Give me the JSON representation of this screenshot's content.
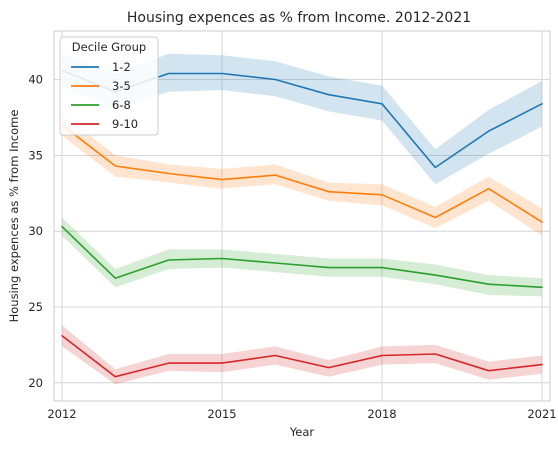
{
  "chart_data": {
    "type": "line",
    "title": "Housing expences as % from Income. 2012-2021",
    "xlabel": "Year",
    "ylabel": "Housing expences as % from Income",
    "xlim": [
      2011.85,
      2021.15
    ],
    "ylim": [
      18.8,
      43.2
    ],
    "xticks": [
      2012,
      2015,
      2018,
      2021
    ],
    "yticks": [
      20,
      25,
      30,
      35,
      40
    ],
    "grid": true,
    "legend": {
      "title": "Decile Group",
      "placement": "top-left"
    },
    "x": [
      2012,
      2013,
      2014,
      2015,
      2016,
      2017,
      2018,
      2019,
      2020,
      2021
    ],
    "series": [
      {
        "name": "1-2",
        "color": "#1f77b4",
        "values": [
          40.6,
          39.2,
          40.4,
          40.4,
          40.0,
          39.0,
          38.4,
          34.2,
          36.6,
          38.4
        ],
        "ci_low": [
          39.6,
          38.0,
          39.2,
          39.3,
          38.9,
          37.9,
          37.3,
          33.1,
          35.1,
          36.9
        ],
        "ci_high": [
          41.7,
          40.4,
          41.7,
          41.6,
          41.2,
          40.2,
          39.6,
          35.4,
          38.0,
          39.9
        ]
      },
      {
        "name": "3-5",
        "color": "#ff7f0e",
        "values": [
          37.0,
          34.3,
          33.8,
          33.4,
          33.7,
          32.6,
          32.4,
          30.9,
          32.8,
          30.6
        ],
        "ci_low": [
          36.3,
          33.6,
          33.2,
          32.8,
          33.1,
          32.0,
          31.7,
          30.2,
          32.0,
          29.7
        ],
        "ci_high": [
          37.7,
          35.0,
          34.4,
          34.1,
          34.4,
          33.2,
          33.1,
          31.6,
          33.6,
          31.5
        ]
      },
      {
        "name": "6-8",
        "color": "#2ca02c",
        "values": [
          30.3,
          26.9,
          28.1,
          28.2,
          27.9,
          27.6,
          27.6,
          27.1,
          26.5,
          26.3
        ],
        "ci_low": [
          29.7,
          26.3,
          27.5,
          27.6,
          27.3,
          27.0,
          27.0,
          26.5,
          25.8,
          25.7
        ],
        "ci_high": [
          30.9,
          27.5,
          28.8,
          28.8,
          28.5,
          28.2,
          28.2,
          27.8,
          27.1,
          26.9
        ]
      },
      {
        "name": "9-10",
        "color": "#d62728",
        "values": [
          23.1,
          20.4,
          21.3,
          21.3,
          21.8,
          21.0,
          21.8,
          21.9,
          20.8,
          21.2
        ],
        "ci_low": [
          22.4,
          19.9,
          20.8,
          20.7,
          21.2,
          20.4,
          21.2,
          21.3,
          20.2,
          20.6
        ],
        "ci_high": [
          23.8,
          20.9,
          21.9,
          21.9,
          22.4,
          21.5,
          22.4,
          22.5,
          21.4,
          21.8
        ]
      }
    ]
  }
}
